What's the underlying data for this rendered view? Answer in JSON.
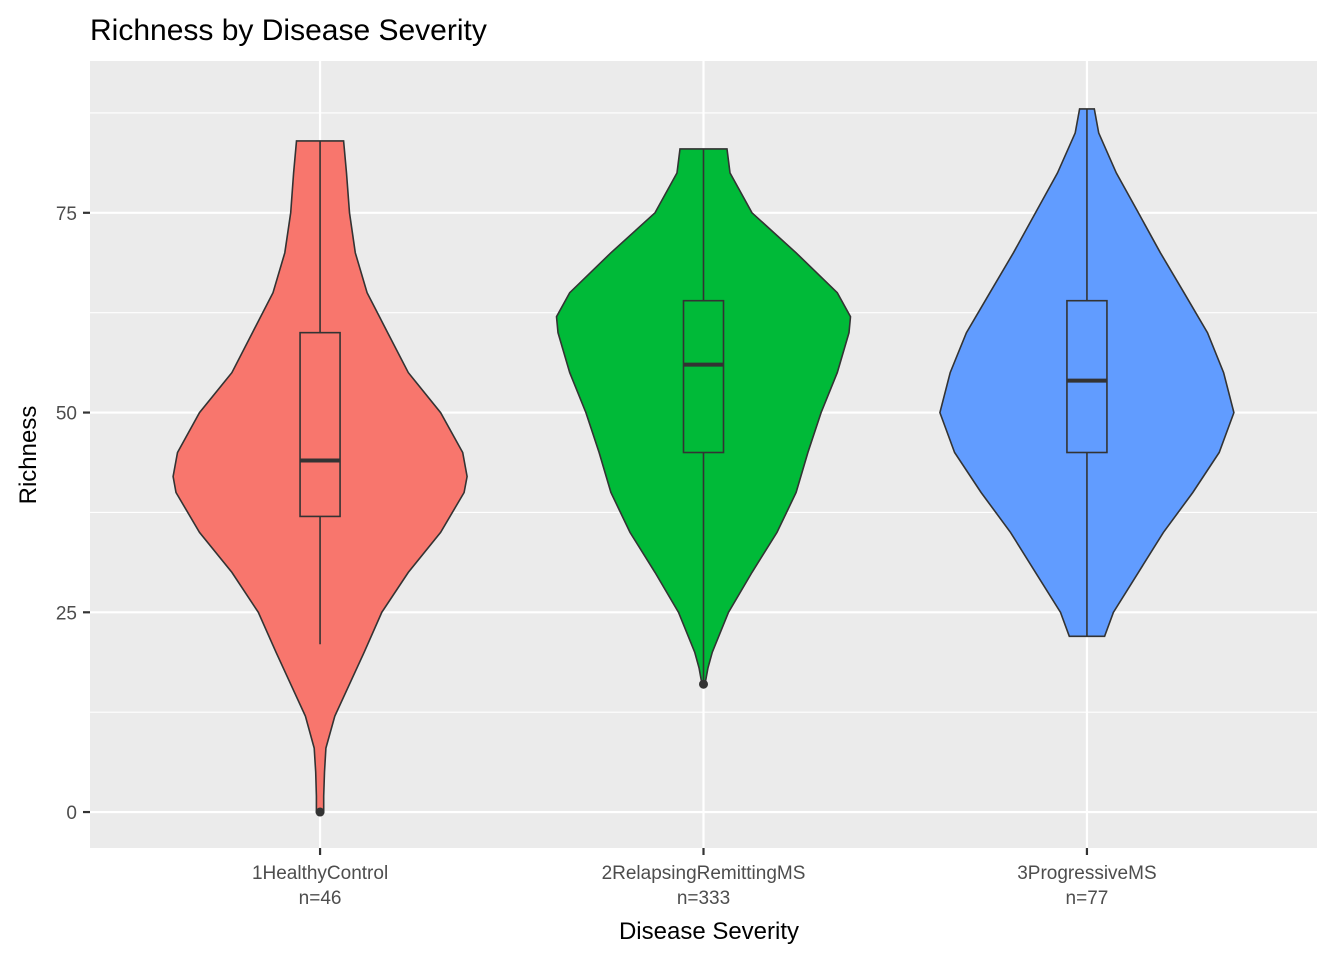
{
  "chart_data": {
    "type": "violin",
    "title": "Richness by Disease Severity",
    "xlabel": "Disease Severity",
    "ylabel": "Richness",
    "ylim": [
      -4.5,
      94
    ],
    "yticks": [
      0,
      25,
      50,
      75
    ],
    "grid": true,
    "legend": "none",
    "categories": [
      {
        "name": "1HealthyControl",
        "count_label": "n=46",
        "color": "#F8766D",
        "min": 0,
        "max": 84,
        "box": {
          "q1": 37,
          "median": 44,
          "q3": 60,
          "whisker_low": 21,
          "whisker_high": 84
        },
        "outliers": [
          0
        ],
        "density": [
          [
            0,
            0.025
          ],
          [
            2,
            0.025
          ],
          [
            5,
            0.03
          ],
          [
            8,
            0.04
          ],
          [
            12,
            0.1
          ],
          [
            16,
            0.2
          ],
          [
            20,
            0.3
          ],
          [
            25,
            0.42
          ],
          [
            30,
            0.6
          ],
          [
            35,
            0.82
          ],
          [
            40,
            0.98
          ],
          [
            42,
            1.0
          ],
          [
            45,
            0.97
          ],
          [
            50,
            0.82
          ],
          [
            55,
            0.6
          ],
          [
            60,
            0.46
          ],
          [
            65,
            0.32
          ],
          [
            70,
            0.24
          ],
          [
            75,
            0.2
          ],
          [
            80,
            0.18
          ],
          [
            84,
            0.16
          ]
        ]
      },
      {
        "name": "2RelapsingRemittingMS",
        "count_label": "n=333",
        "color": "#00BA38",
        "min": 16,
        "max": 83,
        "box": {
          "q1": 45,
          "median": 56,
          "q3": 64,
          "whisker_low": 16,
          "whisker_high": 83
        },
        "outliers": [
          16
        ],
        "density": [
          [
            16,
            0.01
          ],
          [
            18,
            0.03
          ],
          [
            20,
            0.06
          ],
          [
            25,
            0.17
          ],
          [
            30,
            0.33
          ],
          [
            35,
            0.5
          ],
          [
            40,
            0.63
          ],
          [
            45,
            0.71
          ],
          [
            50,
            0.8
          ],
          [
            55,
            0.91
          ],
          [
            60,
            0.99
          ],
          [
            62,
            1.0
          ],
          [
            65,
            0.91
          ],
          [
            70,
            0.63
          ],
          [
            75,
            0.33
          ],
          [
            80,
            0.18
          ],
          [
            83,
            0.16
          ]
        ]
      },
      {
        "name": "3ProgressiveMS",
        "count_label": "n=77",
        "color": "#619CFF",
        "min": 22,
        "max": 88,
        "box": {
          "q1": 45,
          "median": 54,
          "q3": 64,
          "whisker_low": 22,
          "whisker_high": 88
        },
        "outliers": [],
        "density": [
          [
            22,
            0.12
          ],
          [
            25,
            0.18
          ],
          [
            30,
            0.35
          ],
          [
            35,
            0.52
          ],
          [
            40,
            0.72
          ],
          [
            45,
            0.9
          ],
          [
            50,
            1.0
          ],
          [
            55,
            0.93
          ],
          [
            60,
            0.82
          ],
          [
            65,
            0.66
          ],
          [
            70,
            0.5
          ],
          [
            75,
            0.35
          ],
          [
            80,
            0.2
          ],
          [
            85,
            0.08
          ],
          [
            88,
            0.05
          ]
        ]
      }
    ]
  }
}
